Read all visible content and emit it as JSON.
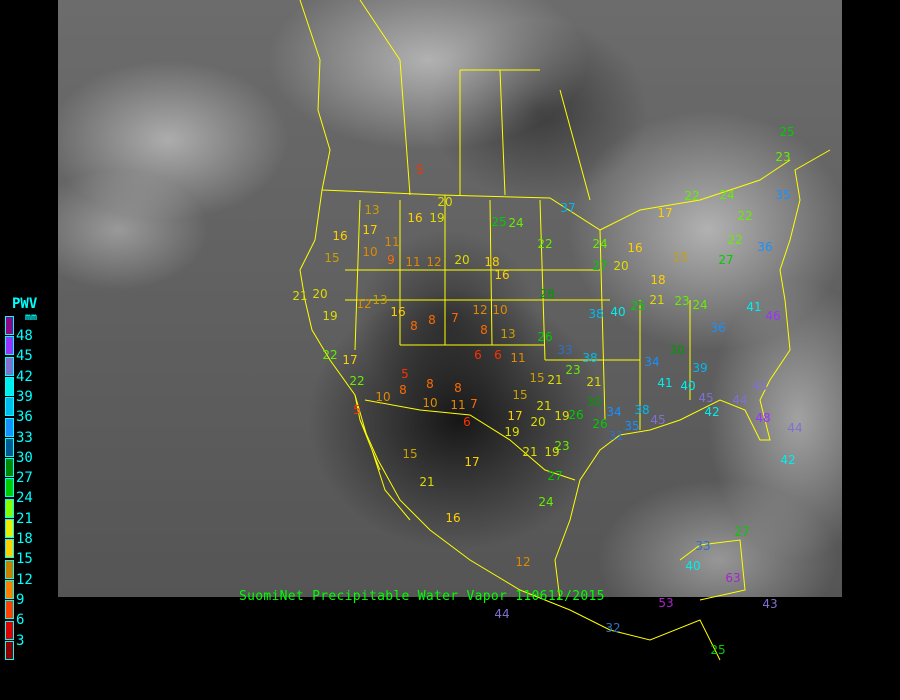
{
  "title": "SuomiNet Precipitable Water Vapor 110612/2015",
  "legend": {
    "title": "PWV",
    "unit": "mm",
    "labels": [
      "48",
      "45",
      "42",
      "39",
      "36",
      "33",
      "30",
      "27",
      "24",
      "21",
      "18",
      "15",
      "12",
      "9",
      "6",
      "3"
    ],
    "colors": [
      "#8a0a8a",
      "#9933ff",
      "#8070d0",
      "#00eeee",
      "#00bbee",
      "#1890ff",
      "#005a90",
      "#008800",
      "#00cc00",
      "#88ff00",
      "#eeee00",
      "#ffd000",
      "#c88000",
      "#ff8000",
      "#ff4000",
      "#dd0000",
      "#8a0000"
    ]
  },
  "colors": {
    "boundaries": "#ffff00",
    "title": "#00ff00",
    "legend_text": "#00ffff"
  },
  "stations": [
    "5",
    "20",
    "16",
    "19",
    "13",
    "17",
    "11",
    "16",
    "15",
    "10",
    "9",
    "11",
    "12",
    "20",
    "18",
    "16",
    "21",
    "20",
    "19",
    "12",
    "13",
    "16",
    "8",
    "8",
    "7",
    "12",
    "10",
    "13",
    "8",
    "6",
    "6",
    "11",
    "26",
    "33",
    "38",
    "15",
    "21",
    "23",
    "21",
    "15",
    "21",
    "20",
    "19",
    "17",
    "19",
    "11",
    "7",
    "6",
    "10",
    "8",
    "8",
    "5",
    "8",
    "5",
    "10",
    "17",
    "22",
    "22",
    "15",
    "17",
    "21",
    "16",
    "12",
    "24",
    "27",
    "23",
    "21",
    "19",
    "26",
    "26",
    "30",
    "34",
    "31",
    "35",
    "38",
    "45",
    "40",
    "45",
    "42",
    "44",
    "45",
    "48",
    "42",
    "44",
    "46",
    "41",
    "36",
    "39",
    "41",
    "34",
    "30",
    "24",
    "21",
    "23",
    "25",
    "18",
    "16",
    "17",
    "13",
    "22",
    "22",
    "24",
    "22",
    "27",
    "36",
    "35",
    "25",
    "23",
    "37",
    "22",
    "24",
    "27",
    "20",
    "28",
    "38",
    "40",
    "25",
    "24",
    "32",
    "25",
    "44",
    "53",
    "63",
    "40",
    "33",
    "27",
    "43"
  ]
}
